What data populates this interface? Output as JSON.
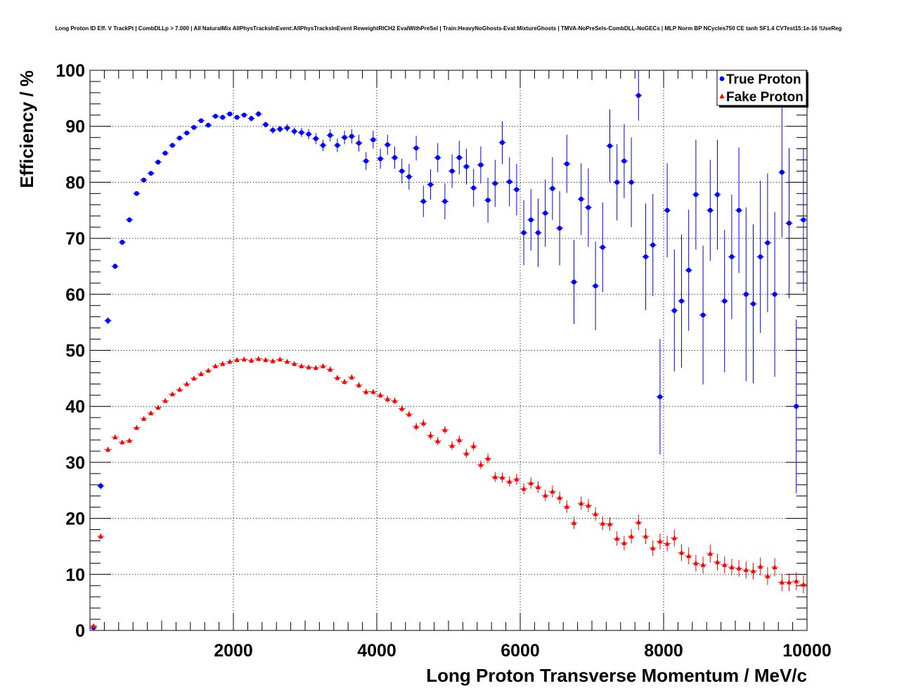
{
  "chart_data": {
    "type": "scatter",
    "title": "Long Proton ID Eff. V TrackPt | CombDLLp > 7.000 | All NaturalMix AllPhysTracksInEvent:AllPhysTracksInEvent ReweightRICH2 EvalWithPreSel | Train:HeavyNoGhosts-Eval:MixtureGhosts | TMVA-NoPreSels-CombDLL-NoGECs | MLP Norm BP NCycles750 CE tanh SF1.4 CVTest15:1e-16 !UseReg",
    "xlabel": "Long Proton Transverse Momentum / MeV/c",
    "ylabel": "Efficiency / %",
    "xlim": [
      0,
      10000
    ],
    "ylim": [
      0,
      100
    ],
    "xticks": [
      2000,
      4000,
      6000,
      8000,
      10000
    ],
    "yticks": [
      0,
      10,
      20,
      30,
      40,
      50,
      60,
      70,
      80,
      90,
      100
    ],
    "grid": true,
    "legend_position": "top-right",
    "bin_width": 100,
    "series": [
      {
        "name": "True Proton",
        "color": "#0000ff",
        "marker": "circle",
        "x": [
          50,
          150,
          250,
          350,
          450,
          550,
          650,
          750,
          850,
          950,
          1050,
          1150,
          1250,
          1350,
          1450,
          1550,
          1650,
          1750,
          1850,
          1950,
          2050,
          2150,
          2250,
          2350,
          2450,
          2550,
          2650,
          2750,
          2850,
          2950,
          3050,
          3150,
          3250,
          3350,
          3450,
          3550,
          3650,
          3750,
          3850,
          3950,
          4050,
          4150,
          4250,
          4350,
          4450,
          4550,
          4650,
          4750,
          4850,
          4950,
          5050,
          5150,
          5250,
          5350,
          5450,
          5550,
          5650,
          5750,
          5850,
          5950,
          6050,
          6150,
          6250,
          6350,
          6450,
          6550,
          6650,
          6750,
          6850,
          6950,
          7050,
          7150,
          7250,
          7350,
          7450,
          7550,
          7650,
          7750,
          7850,
          7950,
          8050,
          8150,
          8250,
          8350,
          8450,
          8550,
          8650,
          8750,
          8850,
          8950,
          9050,
          9150,
          9250,
          9350,
          9450,
          9550,
          9650,
          9750,
          9850,
          9950
        ],
        "y": [
          0.5,
          25.8,
          55.3,
          65,
          69.3,
          73.3,
          78,
          80.4,
          81.6,
          83.6,
          85.2,
          86.6,
          87.9,
          88.8,
          89.8,
          91,
          90.2,
          91.8,
          91.6,
          92.2,
          91.6,
          92,
          91.4,
          92.2,
          90.3,
          89.3,
          89.5,
          89.7,
          89.1,
          88.9,
          88.6,
          87.8,
          86.6,
          88.4,
          86.6,
          88,
          88.2,
          87,
          83.8,
          87.6,
          84.2,
          86.7,
          84.4,
          82,
          81,
          86.1,
          76.6,
          79.6,
          84.4,
          76.6,
          82,
          84.4,
          82.8,
          79,
          83.1,
          76.8,
          79.8,
          87.1,
          80.1,
          78.7,
          71,
          73.3,
          71,
          74.5,
          78.9,
          71.8,
          83.3,
          62.2,
          77,
          75.5,
          61.5,
          68.4,
          86.5,
          80,
          83.8,
          80,
          95.5,
          66.7,
          68.8,
          41.7,
          75,
          57.1,
          58.8,
          64.3,
          77.8,
          56.3,
          75,
          77.8,
          58.8,
          66.7,
          75,
          60,
          58.3,
          66.7,
          69.2,
          60,
          81.8,
          72.7,
          40,
          73.3
        ],
        "err": [
          0.2,
          0.6,
          0.6,
          0.5,
          0.5,
          0.5,
          0.4,
          0.4,
          0.4,
          0.4,
          0.4,
          0.4,
          0.4,
          0.4,
          0.4,
          0.4,
          0.4,
          0.4,
          0.4,
          0.4,
          0.4,
          0.4,
          0.5,
          0.5,
          0.5,
          0.6,
          0.6,
          0.7,
          0.7,
          0.8,
          0.9,
          1,
          1,
          1.1,
          1.2,
          1.2,
          1.3,
          1.5,
          1.6,
          1.6,
          1.8,
          1.8,
          2,
          2.2,
          2.3,
          2.2,
          2.8,
          2.7,
          2.6,
          3.2,
          3,
          3,
          3.2,
          3.4,
          3.3,
          4,
          4.2,
          3.8,
          4.4,
          4.6,
          5.8,
          5.5,
          6.1,
          6,
          5.6,
          6.6,
          5.2,
          7.5,
          6.4,
          7,
          7.9,
          8,
          6.5,
          6.8,
          6.6,
          8,
          4.5,
          9.5,
          9.1,
          10.3,
          8.4,
          10.9,
          11.9,
          10.8,
          9.8,
          12.4,
          9,
          9.8,
          12.7,
          11.1,
          11.2,
          15.5,
          14.2,
          13.6,
          12.4,
          14.7,
          11.6,
          13.4,
          15.5,
          12.8
        ]
      },
      {
        "name": "Fake Proton",
        "color": "#ff0000",
        "marker": "triangle",
        "x": [
          50,
          150,
          250,
          350,
          450,
          550,
          650,
          750,
          850,
          950,
          1050,
          1150,
          1250,
          1350,
          1450,
          1550,
          1650,
          1750,
          1850,
          1950,
          2050,
          2150,
          2250,
          2350,
          2450,
          2550,
          2650,
          2750,
          2850,
          2950,
          3050,
          3150,
          3250,
          3350,
          3450,
          3550,
          3650,
          3750,
          3850,
          3950,
          4050,
          4150,
          4250,
          4350,
          4450,
          4550,
          4650,
          4750,
          4850,
          4950,
          5050,
          5150,
          5250,
          5350,
          5450,
          5550,
          5650,
          5750,
          5850,
          5950,
          6050,
          6150,
          6250,
          6350,
          6450,
          6550,
          6650,
          6750,
          6850,
          6950,
          7050,
          7150,
          7250,
          7350,
          7450,
          7550,
          7650,
          7750,
          7850,
          7950,
          8050,
          8150,
          8250,
          8350,
          8450,
          8550,
          8650,
          8750,
          8850,
          8950,
          9050,
          9150,
          9250,
          9350,
          9450,
          9550,
          9650,
          9750,
          9850,
          9950
        ],
        "y": [
          0.8,
          16.8,
          32.3,
          34.5,
          33.6,
          33.9,
          36.2,
          37.8,
          38.8,
          39.8,
          41,
          42.2,
          43,
          44,
          45,
          45.8,
          46.4,
          47.2,
          47.6,
          48,
          48.3,
          48.4,
          48.2,
          48.5,
          48.3,
          48.1,
          48.4,
          48,
          47.6,
          47.2,
          47,
          46.9,
          47.2,
          46.6,
          45.1,
          44.4,
          45.2,
          43.8,
          42.6,
          42.6,
          42,
          41.3,
          41,
          39.6,
          38.6,
          36.4,
          37,
          34.8,
          33.8,
          35.8,
          33,
          34,
          31.6,
          32.9,
          29.6,
          30.7,
          27.4,
          27.3,
          26.6,
          27,
          25.3,
          26.3,
          25.6,
          24.1,
          24.8,
          23.7,
          22.1,
          19.2,
          22.7,
          22.3,
          20.8,
          19.1,
          19,
          16.4,
          15.6,
          16.8,
          19.3,
          16.8,
          14.7,
          15.9,
          15.5,
          16.5,
          13.9,
          13.3,
          12,
          11.7,
          13.7,
          12.2,
          11.7,
          11.3,
          11.1,
          10.8,
          10.6,
          11.4,
          9.7,
          11.3,
          8.6,
          8.6,
          8.8,
          8.2
        ],
        "err": [
          0.3,
          0.5,
          0.5,
          0.4,
          0.4,
          0.4,
          0.4,
          0.4,
          0.4,
          0.4,
          0.4,
          0.4,
          0.4,
          0.4,
          0.4,
          0.4,
          0.4,
          0.4,
          0.4,
          0.4,
          0.4,
          0.4,
          0.4,
          0.4,
          0.4,
          0.4,
          0.4,
          0.4,
          0.4,
          0.4,
          0.4,
          0.4,
          0.4,
          0.5,
          0.5,
          0.5,
          0.5,
          0.5,
          0.5,
          0.5,
          0.5,
          0.6,
          0.6,
          0.6,
          0.6,
          0.7,
          0.7,
          0.7,
          0.7,
          0.7,
          0.8,
          0.8,
          0.8,
          0.8,
          0.8,
          0.9,
          0.9,
          0.9,
          0.9,
          1,
          1,
          1,
          1,
          1,
          1.1,
          1.1,
          1.1,
          1.1,
          1.2,
          1.2,
          1.2,
          1.2,
          1.2,
          1.3,
          1.3,
          1.3,
          1.4,
          1.4,
          1.4,
          1.4,
          1.4,
          1.5,
          1.5,
          1.5,
          1.5,
          1.5,
          1.6,
          1.5,
          1.5,
          1.5,
          1.5,
          1.5,
          1.5,
          1.6,
          1.6,
          1.6,
          1.6,
          1.6,
          1.6,
          1.6
        ]
      }
    ]
  }
}
